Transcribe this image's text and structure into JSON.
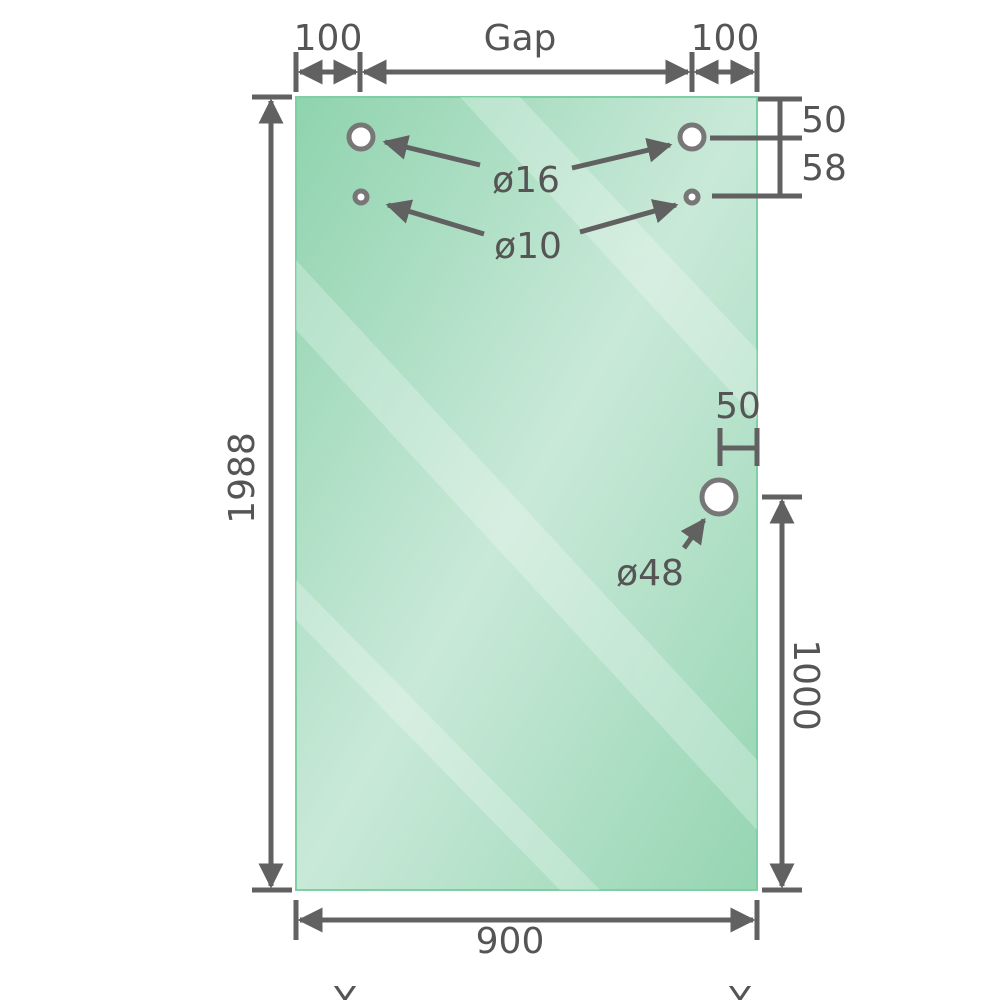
{
  "panel": {
    "color_edge": "#8fd3ae",
    "color_center": "#c9e9d8",
    "line_color": "#616161"
  },
  "dimensions": {
    "top_left_offset": "100",
    "gap": "Gap",
    "top_right_offset": "100",
    "height": "1988",
    "width": "900",
    "hole_top_offset": "50",
    "hole_spacing": "58",
    "handle_edge_offset": "50",
    "handle_height": "1000"
  },
  "holes": {
    "large": "ø16",
    "small": "ø10",
    "handle": "ø48"
  },
  "bottom_marks": [
    "Y",
    "Y"
  ]
}
